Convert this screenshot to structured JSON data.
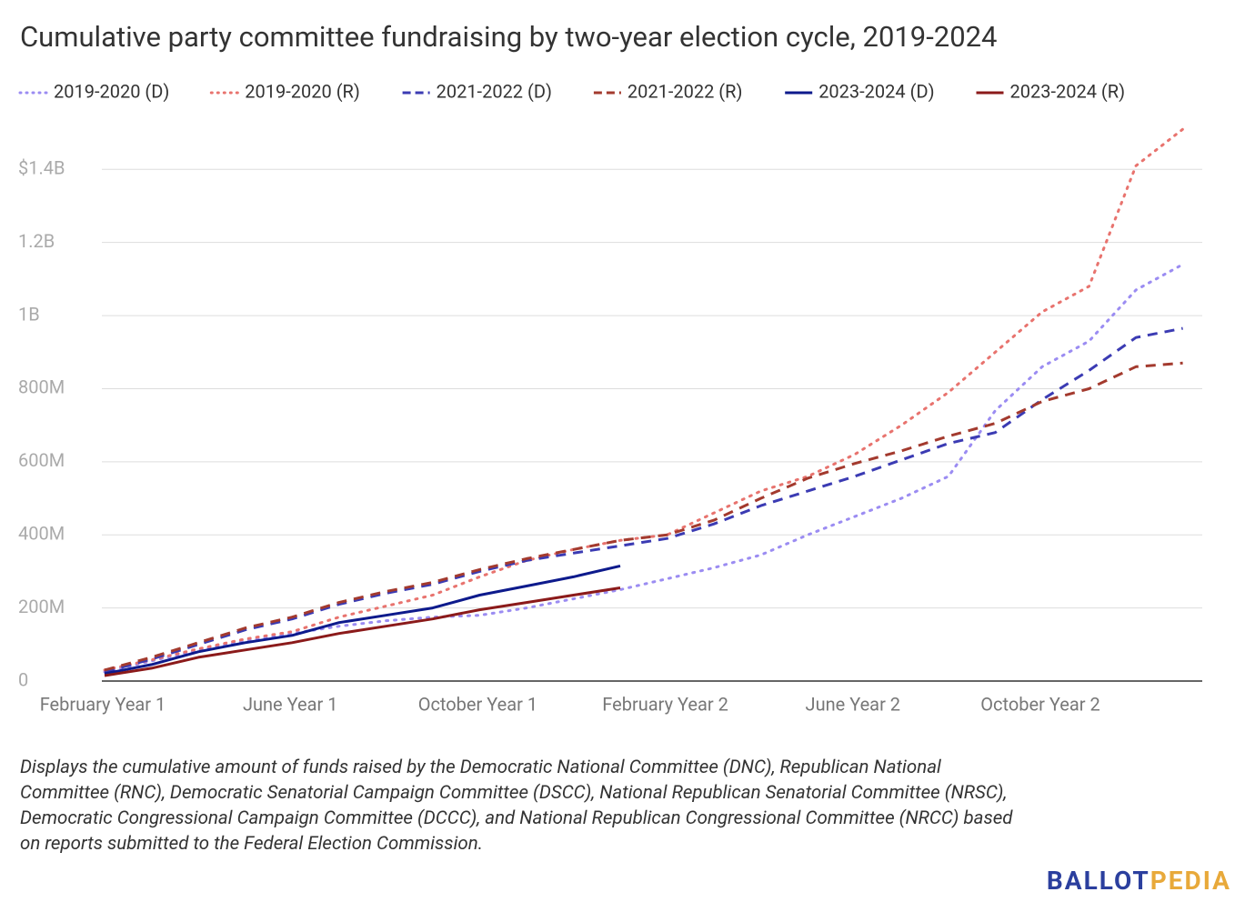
{
  "chart_data": {
    "type": "line",
    "title": "Cumulative party committee fundraising by two-year election cycle, 2019-2024",
    "categories": [
      "February Year 1",
      null,
      null,
      null,
      "June Year 1",
      null,
      null,
      null,
      "October Year 1",
      null,
      null,
      null,
      "February Year 2",
      null,
      null,
      null,
      "June Year 2",
      null,
      null,
      null,
      "October Year 2",
      null,
      null,
      null
    ],
    "series": [
      {
        "name": "2019-2020 (D)",
        "color": "#9b8cf2",
        "dash": "dotted",
        "values": [
          25000000,
          55000000,
          85000000,
          110000000,
          130000000,
          150000000,
          165000000,
          175000000,
          180000000,
          200000000,
          225000000,
          250000000,
          280000000,
          310000000,
          345000000,
          400000000,
          450000000,
          500000000,
          560000000,
          740000000,
          860000000,
          930000000,
          1070000000,
          1140000000
        ]
      },
      {
        "name": "2019-2020 (R)",
        "color": "#e8736e",
        "dash": "dotted",
        "values": [
          30000000,
          58000000,
          88000000,
          115000000,
          135000000,
          175000000,
          205000000,
          235000000,
          285000000,
          330000000,
          360000000,
          385000000,
          400000000,
          460000000,
          520000000,
          560000000,
          620000000,
          700000000,
          790000000,
          900000000,
          1010000000,
          1080000000,
          1410000000,
          1510000000
        ]
      },
      {
        "name": "2021-2022 (D)",
        "color": "#3b3bb3",
        "dash": "dashed",
        "values": [
          25000000,
          60000000,
          100000000,
          140000000,
          170000000,
          210000000,
          240000000,
          265000000,
          300000000,
          330000000,
          350000000,
          370000000,
          390000000,
          430000000,
          480000000,
          520000000,
          560000000,
          605000000,
          650000000,
          680000000,
          770000000,
          850000000,
          940000000,
          965000000
        ]
      },
      {
        "name": "2021-2022 (R)",
        "color": "#a33a2e",
        "dash": "dashed",
        "values": [
          30000000,
          65000000,
          105000000,
          145000000,
          175000000,
          215000000,
          245000000,
          270000000,
          305000000,
          335000000,
          360000000,
          385000000,
          400000000,
          440000000,
          500000000,
          555000000,
          595000000,
          630000000,
          670000000,
          705000000,
          765000000,
          800000000,
          860000000,
          870000000
        ]
      },
      {
        "name": "2023-2024 (D)",
        "color": "#0d1a8c",
        "dash": "solid",
        "values": [
          20000000,
          45000000,
          80000000,
          105000000,
          125000000,
          160000000,
          180000000,
          200000000,
          235000000,
          260000000,
          285000000,
          315000000,
          null,
          null,
          null,
          null,
          null,
          null,
          null,
          null,
          null,
          null,
          null,
          null
        ]
      },
      {
        "name": "2023-2024 (R)",
        "color": "#8b1a1a",
        "dash": "solid",
        "values": [
          15000000,
          35000000,
          65000000,
          85000000,
          105000000,
          130000000,
          150000000,
          170000000,
          195000000,
          215000000,
          235000000,
          255000000,
          null,
          null,
          null,
          null,
          null,
          null,
          null,
          null,
          null,
          null,
          null,
          null
        ]
      }
    ],
    "ylim": [
      0,
      1550000000
    ],
    "yticks": [
      0,
      {
        "value": 200000000,
        "label": "200M"
      },
      {
        "value": 400000000,
        "label": "400M"
      },
      {
        "value": 600000000,
        "label": "600M"
      },
      {
        "value": 800000000,
        "label": "800M"
      },
      {
        "value": 1000000000,
        "label": "1B"
      },
      {
        "value": 1200000000,
        "label": "1.2B"
      },
      {
        "value": 1400000000,
        "label": "$1.4B"
      }
    ],
    "grid": true,
    "legend": "top",
    "note": [
      "Displays the cumulative amount of funds raised by the Democratic National Committee (DNC), Republican National",
      "Committee (RNC), Democratic Senatorial Campaign Committee (DSCC), National Republican Senatorial Committee (NRSC),",
      "Democratic Congressional Campaign Committee (DCCC), and National Republican Congressional Committee (NRCC) based",
      "on reports submitted to the Federal Election Commission."
    ],
    "logo": [
      "BALLOT",
      "PEDIA"
    ]
  }
}
